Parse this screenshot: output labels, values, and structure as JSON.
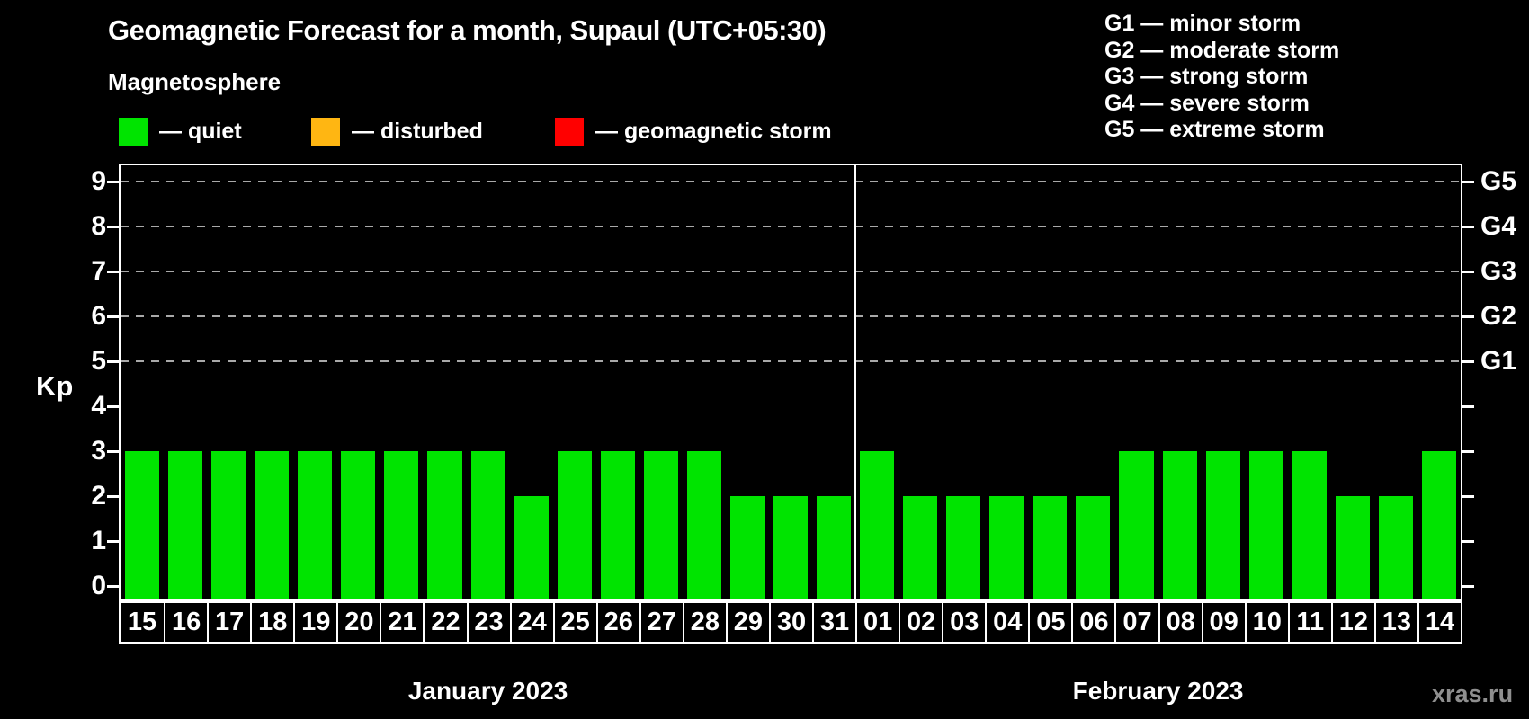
{
  "title": "Geomagnetic Forecast for a month, Supaul (UTC+05:30)",
  "subtitle": "Magnetosphere",
  "watermark": "xras.ru",
  "colors": {
    "background": "#000000",
    "quiet": "#00e400",
    "disturbed": "#ffb612",
    "storm": "#ff0000",
    "axis": "#ffffff",
    "grid": "#a9a9a9",
    "watermark_text": "#8f8f8f"
  },
  "legend": {
    "items": [
      {
        "name": "quiet",
        "label": "— quiet",
        "color": "#00e400"
      },
      {
        "name": "disturbed",
        "label": "— disturbed",
        "color": "#ffb612"
      },
      {
        "name": "storm",
        "label": "— geomagnetic storm",
        "color": "#ff0000"
      }
    ]
  },
  "g_legend": {
    "lines": [
      "G1 — minor storm",
      "G2 — moderate storm",
      "G3 — strong storm",
      "G4 — severe storm",
      "G5 — extreme storm"
    ]
  },
  "chart_data": {
    "type": "bar",
    "title": "Geomagnetic Forecast for a month, Supaul (UTC+05:30)",
    "subtitle": "Magnetosphere",
    "xlabel": "",
    "ylabel": "Kp",
    "ylim": [
      0,
      9
    ],
    "yticks": [
      0,
      1,
      2,
      3,
      4,
      5,
      6,
      7,
      8,
      9
    ],
    "grid_levels": [
      5,
      6,
      7,
      8,
      9
    ],
    "grid_style": "dashed",
    "legend_position": "top-left",
    "right_axis": {
      "labels": [
        {
          "text": "G1",
          "kp": 5
        },
        {
          "text": "G2",
          "kp": 6
        },
        {
          "text": "G3",
          "kp": 7
        },
        {
          "text": "G4",
          "kp": 8
        },
        {
          "text": "G5",
          "kp": 9
        }
      ]
    },
    "months": [
      {
        "label": "January 2023",
        "days": [
          "15",
          "16",
          "17",
          "18",
          "19",
          "20",
          "21",
          "22",
          "23",
          "24",
          "25",
          "26",
          "27",
          "28",
          "29",
          "30",
          "31"
        ],
        "values": [
          3,
          3,
          3,
          3,
          3,
          3,
          3,
          3,
          3,
          2,
          3,
          3,
          3,
          3,
          2,
          2,
          2
        ],
        "statuses": [
          "quiet",
          "quiet",
          "quiet",
          "quiet",
          "quiet",
          "quiet",
          "quiet",
          "quiet",
          "quiet",
          "quiet",
          "quiet",
          "quiet",
          "quiet",
          "quiet",
          "quiet",
          "quiet",
          "quiet"
        ]
      },
      {
        "label": "February 2023",
        "days": [
          "01",
          "02",
          "03",
          "04",
          "05",
          "06",
          "07",
          "08",
          "09",
          "10",
          "11",
          "12",
          "13",
          "14"
        ],
        "values": [
          3,
          2,
          2,
          2,
          2,
          2,
          3,
          3,
          3,
          3,
          3,
          2,
          2,
          3
        ],
        "statuses": [
          "quiet",
          "quiet",
          "quiet",
          "quiet",
          "quiet",
          "quiet",
          "quiet",
          "quiet",
          "quiet",
          "quiet",
          "quiet",
          "quiet",
          "quiet",
          "quiet"
        ]
      }
    ]
  }
}
